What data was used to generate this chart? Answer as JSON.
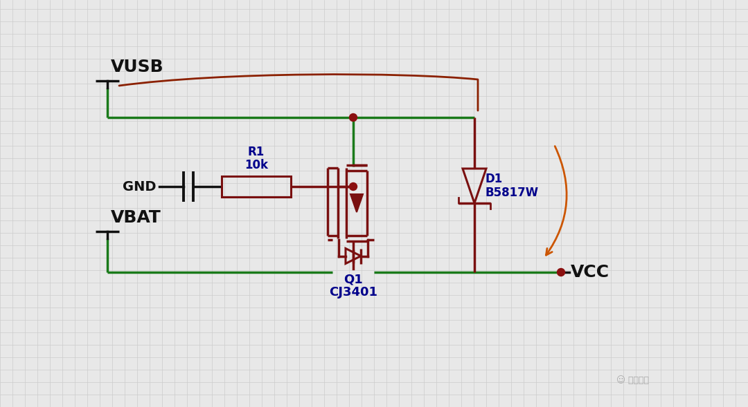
{
  "bg_color": "#e8e8e8",
  "grid_color": "#cccccc",
  "green": "#1a7a1a",
  "dark_red": "#7a1010",
  "orange": "#cc5500",
  "black": "#111111",
  "blue": "#00008B",
  "dot_color": "#8B1010",
  "vusb_label": "VUSB",
  "vbat_label": "VBAT",
  "gnd_label": "GND",
  "vcc_label": "VCC",
  "r1_label": "R1\n10k",
  "d1_label": "D1\nB5817W",
  "q1_label": "Q1\nCJ3401",
  "watermark": "芯片之家",
  "lw_wire": 2.5,
  "lw_comp": 2.2,
  "dot_r": 0.055,
  "grid_step": 0.18
}
